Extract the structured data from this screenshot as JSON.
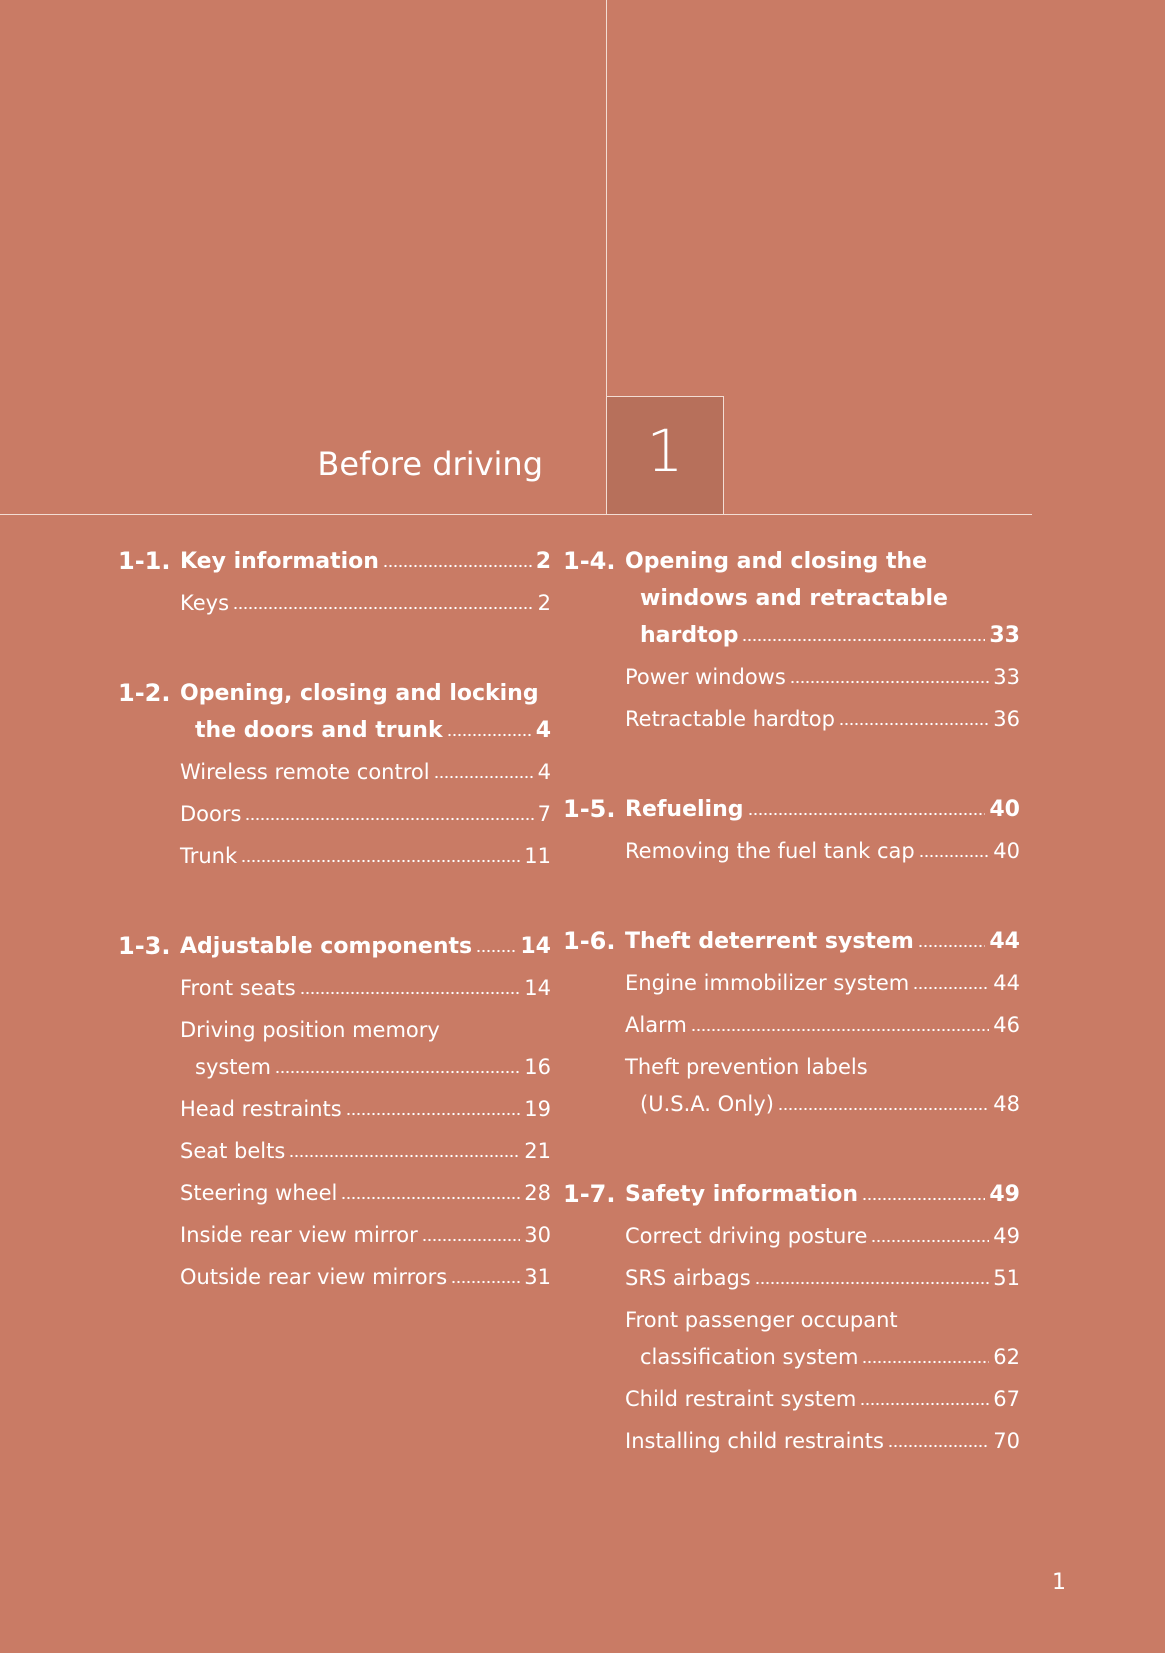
{
  "chapter": {
    "number": "1",
    "title": "Before driving"
  },
  "page_number": "1",
  "columns": [
    [
      {
        "num": "1-1.",
        "title": [
          "Key information"
        ],
        "page": "2",
        "items": [
          {
            "lines": [
              "Keys"
            ],
            "page": "2"
          }
        ]
      },
      {
        "num": "1-2.",
        "title": [
          "Opening, closing and locking",
          "the doors and trunk"
        ],
        "page": "4",
        "items": [
          {
            "lines": [
              "Wireless remote control"
            ],
            "page": "4"
          },
          {
            "lines": [
              "Doors"
            ],
            "page": "7"
          },
          {
            "lines": [
              "Trunk"
            ],
            "page": "11"
          }
        ]
      },
      {
        "num": "1-3.",
        "title": [
          "Adjustable components"
        ],
        "page": "14",
        "items": [
          {
            "lines": [
              "Front seats"
            ],
            "page": "14"
          },
          {
            "lines": [
              "Driving position memory",
              "system"
            ],
            "page": "16"
          },
          {
            "lines": [
              "Head restraints"
            ],
            "page": "19"
          },
          {
            "lines": [
              "Seat belts"
            ],
            "page": "21"
          },
          {
            "lines": [
              "Steering wheel"
            ],
            "page": "28"
          },
          {
            "lines": [
              "Inside rear view mirror"
            ],
            "page": "30"
          },
          {
            "lines": [
              "Outside rear view mirrors"
            ],
            "page": "31"
          }
        ]
      }
    ],
    [
      {
        "num": "1-4.",
        "title": [
          "Opening and closing the",
          "windows and retractable",
          "hardtop"
        ],
        "page": "33",
        "items": [
          {
            "lines": [
              "Power windows"
            ],
            "page": "33"
          },
          {
            "lines": [
              "Retractable hardtop"
            ],
            "page": "36"
          }
        ]
      },
      {
        "num": "1-5.",
        "title": [
          "Refueling"
        ],
        "page": "40",
        "items": [
          {
            "lines": [
              "Removing the fuel tank cap"
            ],
            "page": "40"
          }
        ]
      },
      {
        "num": "1-6.",
        "title": [
          "Theft deterrent system"
        ],
        "page": "44",
        "items": [
          {
            "lines": [
              "Engine immobilizer system"
            ],
            "page": "44"
          },
          {
            "lines": [
              "Alarm"
            ],
            "page": "46"
          },
          {
            "lines": [
              "Theft prevention labels",
              "(U.S.A. Only)"
            ],
            "page": "48"
          }
        ]
      },
      {
        "num": "1-7.",
        "title": [
          "Safety information"
        ],
        "page": "49",
        "items": [
          {
            "lines": [
              "Correct driving posture"
            ],
            "page": "49"
          },
          {
            "lines": [
              "SRS airbags"
            ],
            "page": "51"
          },
          {
            "lines": [
              "Front passenger occupant",
              "classification system"
            ],
            "page": "62"
          },
          {
            "lines": [
              "Child restraint system"
            ],
            "page": "67"
          },
          {
            "lines": [
              "Installing child restraints"
            ],
            "page": "70"
          }
        ]
      }
    ]
  ]
}
